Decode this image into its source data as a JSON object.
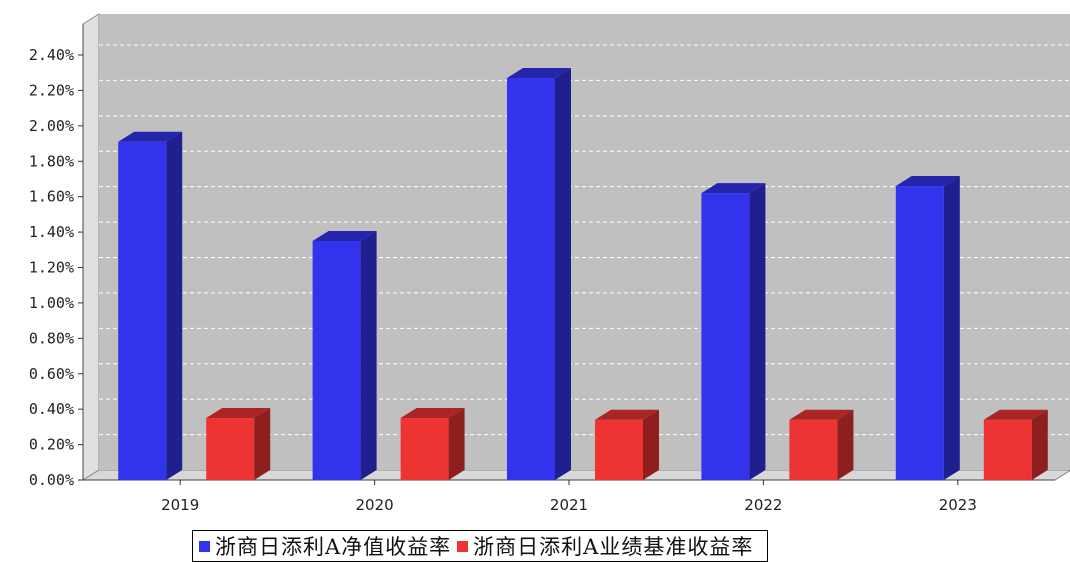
{
  "chart_data": {
    "type": "bar",
    "categories": [
      "2019",
      "2020",
      "2021",
      "2022",
      "2023"
    ],
    "series": [
      {
        "name": "浙商日添利A净值收益率",
        "color": "#3333ee",
        "values": [
          1.91,
          1.35,
          2.27,
          1.62,
          1.66
        ]
      },
      {
        "name": "浙商日添利A业绩基准收益率",
        "color": "#ee3333",
        "values": [
          0.35,
          0.35,
          0.34,
          0.34,
          0.34
        ]
      }
    ],
    "yticks": [
      "0.00%",
      "0.20%",
      "0.40%",
      "0.60%",
      "0.80%",
      "1.00%",
      "1.20%",
      "1.40%",
      "1.60%",
      "1.80%",
      "2.00%",
      "2.20%",
      "2.40%"
    ],
    "ylim": [
      0,
      2.4
    ],
    "y_unit": "%",
    "grid": true,
    "legend_position": "bottom",
    "title": "",
    "xlabel": "",
    "ylabel": ""
  }
}
